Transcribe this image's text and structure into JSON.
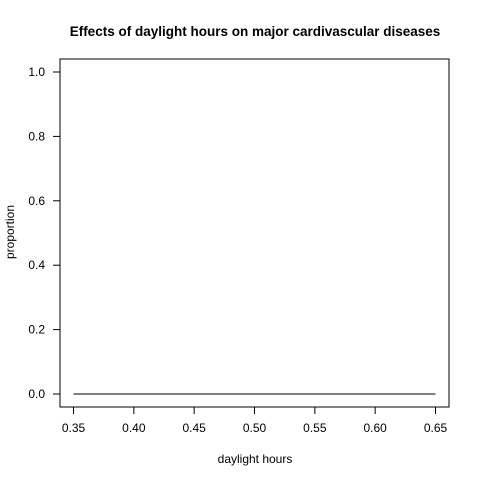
{
  "chart_data": {
    "type": "line",
    "title": "Effects of daylight hours on major cardivascular diseases",
    "xlabel": "daylight hours",
    "ylabel": "proportion",
    "xlim": [
      0.35,
      0.65
    ],
    "ylim": [
      0.0,
      1.0
    ],
    "x_ticks": [
      "0.35",
      "0.40",
      "0.45",
      "0.50",
      "0.55",
      "0.60",
      "0.65"
    ],
    "y_ticks": [
      "0.0",
      "0.2",
      "0.4",
      "0.6",
      "0.8",
      "1.0"
    ],
    "grid": false,
    "series": [
      {
        "x": [
          0.35,
          0.4,
          0.45,
          0.5,
          0.55,
          0.6,
          0.65
        ],
        "y": [
          0.0,
          0.0,
          0.0,
          0.0,
          0.0,
          0.0,
          0.0
        ],
        "color": "#000000"
      }
    ]
  }
}
